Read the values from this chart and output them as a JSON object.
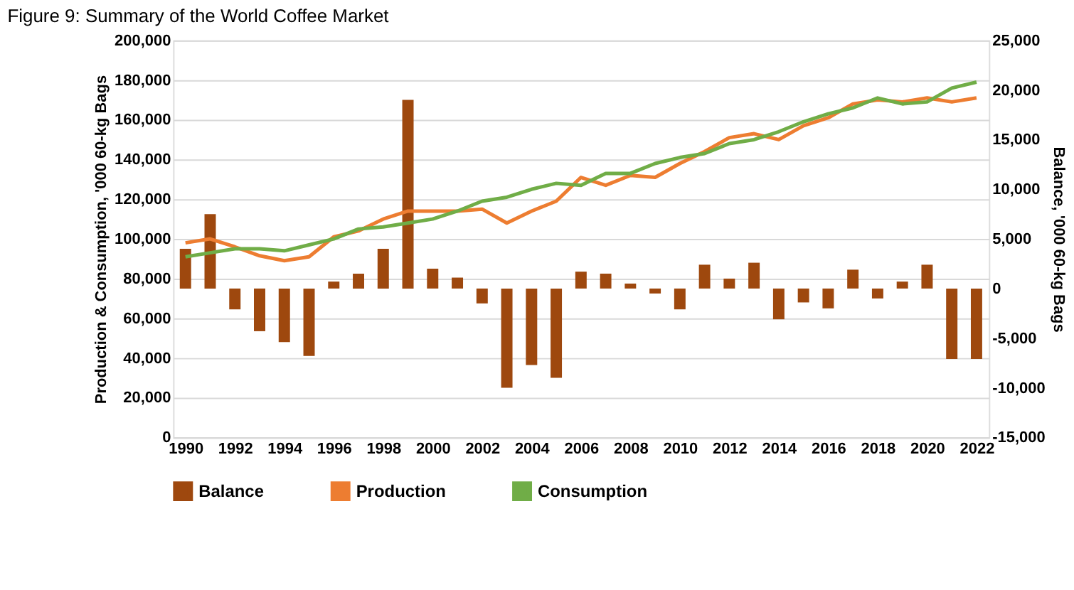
{
  "chart_data": {
    "type": "bar",
    "title": "Figure 9: Summary of the World Coffee Market",
    "ylabel": "Production & Consumption, '000 60-kg Bags",
    "y2label": "Balance, '000 60-kg Bags",
    "x": [
      1990,
      1991,
      1992,
      1993,
      1994,
      1995,
      1996,
      1997,
      1998,
      1999,
      2000,
      2001,
      2002,
      2003,
      2004,
      2005,
      2006,
      2007,
      2008,
      2009,
      2010,
      2011,
      2012,
      2013,
      2014,
      2015,
      2016,
      2017,
      2018,
      2019,
      2020,
      2021,
      2022
    ],
    "series": [
      {
        "name": "Balance",
        "axis": "y2",
        "color": "#9e480e",
        "values": [
          4000,
          7500,
          -2100,
          -4300,
          -5400,
          -6800,
          700,
          1500,
          4000,
          19000,
          2000,
          1100,
          -1500,
          -10000,
          -7700,
          -9000,
          1700,
          1500,
          500,
          -500,
          -2100,
          2400,
          1000,
          2600,
          -3100,
          -1400,
          -2000,
          1900,
          -1000,
          700,
          2400,
          -7100,
          -7100
        ]
      },
      {
        "name": "Production",
        "type": "line",
        "color": "#ed7d31",
        "values": [
          98000,
          100000,
          96000,
          91500,
          89000,
          91000,
          101000,
          104000,
          110000,
          114000,
          114000,
          114000,
          115000,
          108000,
          114000,
          119000,
          131000,
          127000,
          132000,
          131000,
          138000,
          144000,
          151000,
          153000,
          150000,
          157000,
          161000,
          168000,
          170000,
          169000,
          171000,
          169000,
          171000
        ]
      },
      {
        "name": "Consumption",
        "type": "line",
        "color": "#70ad47",
        "values": [
          91000,
          93000,
          95000,
          95000,
          94000,
          97000,
          100000,
          105000,
          106000,
          108000,
          110000,
          114000,
          119000,
          121000,
          125000,
          128000,
          127000,
          133000,
          133000,
          138000,
          141000,
          143000,
          148000,
          150000,
          154000,
          159000,
          163000,
          166000,
          171000,
          168000,
          169000,
          176000,
          179000
        ]
      }
    ],
    "xlim": [
      1989.5,
      2022.5
    ],
    "xticks": [
      1990,
      1992,
      1994,
      1996,
      1998,
      2000,
      2002,
      2004,
      2006,
      2008,
      2010,
      2012,
      2014,
      2016,
      2018,
      2020,
      2022
    ],
    "ylim": [
      0,
      200000
    ],
    "yticks": [
      0,
      {
        "value": 20000,
        "label": "20,000"
      },
      {
        "value": 40000,
        "label": "40,000"
      },
      {
        "value": 60000,
        "label": "60,000"
      },
      {
        "value": 80000,
        "label": "80,000"
      },
      {
        "value": 100000,
        "label": "100,000"
      },
      {
        "value": 120000,
        "label": "120,000"
      },
      {
        "value": 140000,
        "label": "140,000"
      },
      {
        "value": 160000,
        "label": "160,000"
      },
      {
        "value": 180000,
        "label": "180,000"
      },
      {
        "value": 200000,
        "label": "200,000"
      }
    ],
    "y2lim": [
      -15000,
      25000
    ],
    "y2ticks": [
      {
        "value": -15000,
        "label": "-15,000"
      },
      {
        "value": -10000,
        "label": "-10,000"
      },
      {
        "value": -5000,
        "label": "-5,000"
      },
      0,
      {
        "value": 5000,
        "label": "5,000"
      },
      {
        "value": 10000,
        "label": "10,000"
      },
      {
        "value": 15000,
        "label": "15,000"
      },
      {
        "value": 20000,
        "label": "20,000"
      },
      {
        "value": 25000,
        "label": "25,000"
      }
    ],
    "grid": "y",
    "legend": "bottom",
    "line_style": "solid",
    "marker": "none"
  }
}
